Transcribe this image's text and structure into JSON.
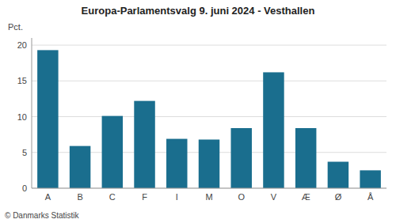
{
  "chart_data": {
    "type": "bar",
    "title": "Europa-Parlamentsvalg 9. juni 2024 - Vesthallen",
    "ylabel": "Pct.",
    "footer": "© Danmarks Statistik",
    "categories": [
      "A",
      "B",
      "C",
      "F",
      "I",
      "M",
      "O",
      "V",
      "Æ",
      "Ø",
      "Å"
    ],
    "values": [
      19.3,
      5.9,
      10.1,
      12.2,
      6.9,
      6.8,
      8.4,
      16.2,
      8.4,
      3.7,
      2.5
    ],
    "color": "#1a6e8e",
    "ylim": [
      0,
      21
    ],
    "yticks": [
      0,
      5,
      10,
      15,
      20
    ],
    "grid": true
  }
}
